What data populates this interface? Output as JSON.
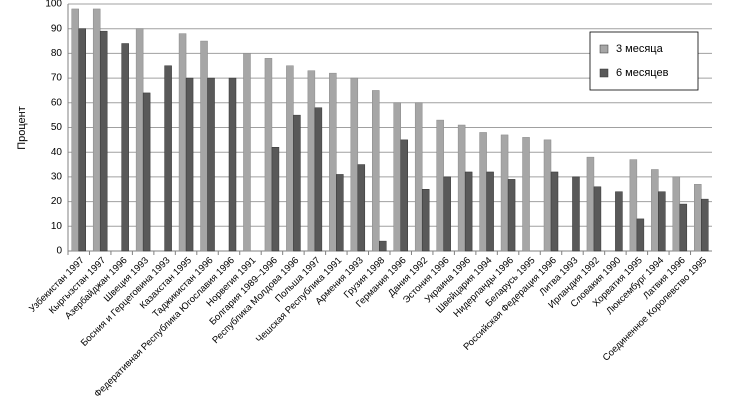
{
  "chart_data": {
    "type": "bar",
    "y_label": "Процент",
    "categories": [
      "Узбекистан 1997",
      "Кыргызстан 1997",
      "Азербайджан 1996",
      "Швеция 1993",
      "Босния и Герцеговина 1993",
      "Казахстан 1995",
      "Таджикистан 1996",
      "Федеративная Республика Югославия 1996",
      "Норвегия 1991",
      "Болгария 1989–1996",
      "Республика Молдова 1996",
      "Польша 1997",
      "Чешская Республика 1991",
      "Армения 1993",
      "Грузия 1998",
      "Германия 1996",
      "Дания 1992",
      "Эстония 1996",
      "Украина 1996",
      "Швейцария 1994",
      "Нидерланды 1996",
      "Беларусь 1995",
      "Российская Федерация 1996",
      "Литва 1993",
      "Ирландия 1992",
      "Словакия 1990",
      "Хорватия 1995",
      "Люксембург 1994",
      "Латвия 1996",
      "Соединенное Королевство 1995"
    ],
    "series": [
      {
        "name": "3 месяца",
        "color": "#a6a6a6",
        "values": [
          98,
          98,
          null,
          90,
          null,
          88,
          85,
          null,
          80,
          78,
          75,
          73,
          72,
          70,
          65,
          60,
          60,
          53,
          51,
          48,
          47,
          46,
          45,
          null,
          38,
          null,
          37,
          33,
          30,
          27
        ]
      },
      {
        "name": "6 месяцев",
        "color": "#595959",
        "values": [
          90,
          89,
          84,
          64,
          75,
          70,
          70,
          70,
          null,
          42,
          55,
          58,
          31,
          35,
          4,
          45,
          25,
          30,
          32,
          32,
          29,
          null,
          32,
          30,
          26,
          24,
          13,
          24,
          19,
          21
        ]
      }
    ],
    "ylim": [
      0,
      100
    ],
    "yticks": [
      0,
      10,
      20,
      30,
      40,
      50,
      60,
      70,
      80,
      90,
      100
    ],
    "grid": true,
    "legend": "upper right"
  }
}
